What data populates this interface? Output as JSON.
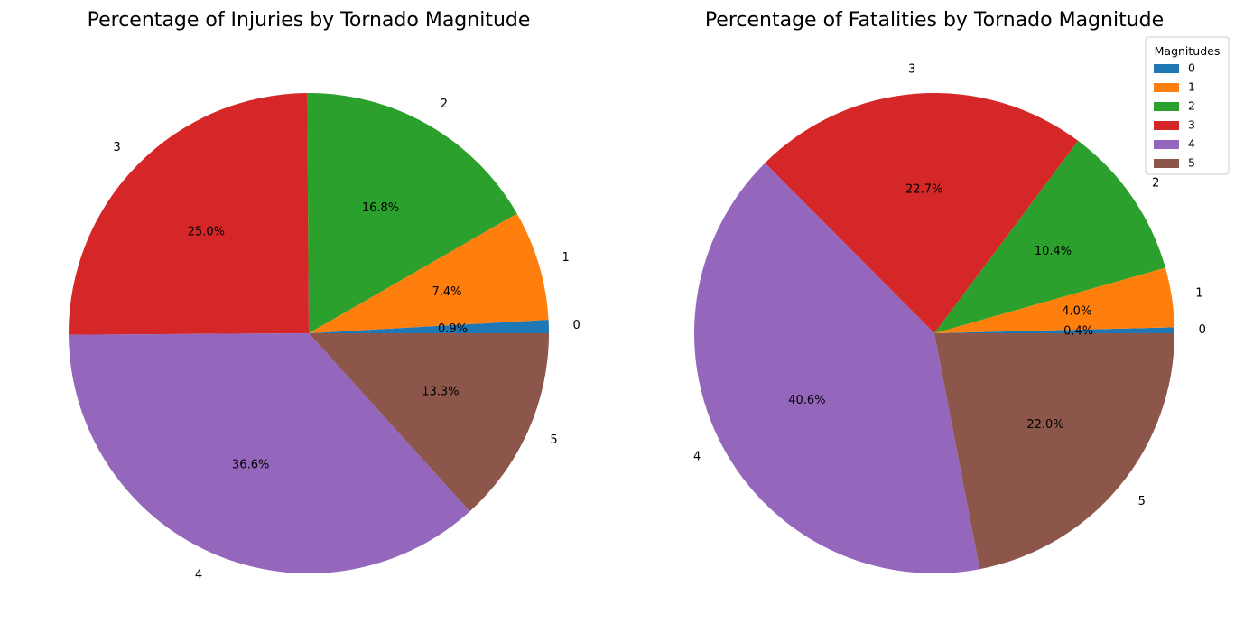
{
  "colors": [
    "#1f77b4",
    "#ff7f0e",
    "#2ca02c",
    "#d62728",
    "#9467bd",
    "#8c564b"
  ],
  "legend": {
    "title": "Magnitudes",
    "items": [
      "0",
      "1",
      "2",
      "3",
      "4",
      "5"
    ]
  },
  "chart_data": [
    {
      "type": "pie",
      "title": "Percentage of Injuries by Tornado Magnitude",
      "labels": [
        "0",
        "1",
        "2",
        "3",
        "4",
        "5"
      ],
      "values": [
        0.9,
        7.4,
        16.8,
        25.0,
        36.6,
        13.3
      ],
      "value_labels": [
        "0.9%",
        "7.4%",
        "16.8%",
        "25.0%",
        "36.6%",
        "13.3%"
      ],
      "start_angle_deg": 0,
      "direction": "counterclockwise"
    },
    {
      "type": "pie",
      "title": "Percentage of Fatalities by Tornado Magnitude",
      "labels": [
        "0",
        "1",
        "2",
        "3",
        "4",
        "5"
      ],
      "values": [
        0.4,
        4.0,
        10.4,
        22.7,
        40.6,
        22.0
      ],
      "value_labels": [
        "0.4%",
        "4.0%",
        "10.4%",
        "22.7%",
        "40.6%",
        "22.0%"
      ],
      "start_angle_deg": 0,
      "direction": "counterclockwise"
    }
  ]
}
